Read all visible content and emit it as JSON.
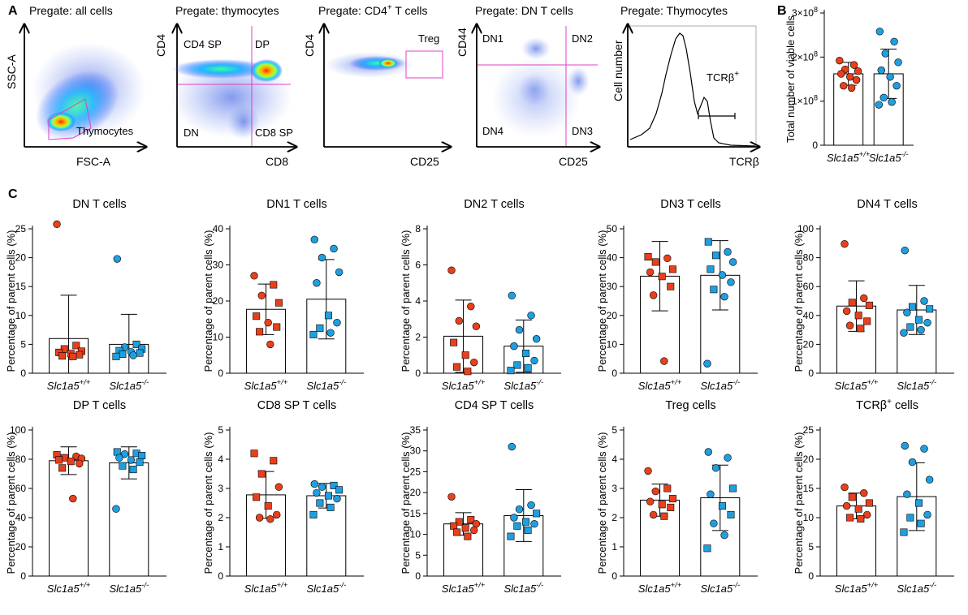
{
  "panels": {
    "A": "A",
    "B": "B",
    "C": "C"
  },
  "flow": [
    {
      "title": "Pregate: all cells",
      "xlabel": "FSC-A",
      "ylabel": "SSC-A",
      "gates": [
        "Thymocytes"
      ]
    },
    {
      "title": "Pregate: thymocytes",
      "xlabel": "CD8",
      "ylabel": "CD4",
      "gates": [
        "CD4 SP",
        "DP",
        "DN",
        "CD8 SP"
      ]
    },
    {
      "title": "Pregate: CD4+ T cells",
      "title_main": "Pregate: CD4",
      "title_sup": "+",
      "title_tail": " T cells",
      "xlabel": "CD25",
      "ylabel": "CD4",
      "gates": [
        "Treg"
      ]
    },
    {
      "title": "Pregate: DN T cells",
      "xlabel": "CD25",
      "ylabel": "CD44",
      "gates": [
        "DN1",
        "DN2",
        "DN4",
        "DN3"
      ]
    },
    {
      "title": "Pregate: Thymocytes",
      "xlabel": "TCRβ",
      "ylabel": "Cell number",
      "gate_main": "TCRβ",
      "gate_sup": "+"
    }
  ],
  "genotypes": [
    {
      "base": "Slc1a5",
      "sup": "+/+"
    },
    {
      "base": "Slc1a5",
      "sup": "-/-"
    }
  ],
  "colors": {
    "wt": "#e8401c",
    "ko": "#1f9fe0",
    "gate": "#e040c0"
  },
  "chart_data": [
    {
      "id": "B",
      "type": "bar",
      "title": "",
      "ylabel": "Total number of viable cells",
      "yticks": [
        {
          "v": 0,
          "base": "0",
          "exp": ""
        },
        {
          "v": 100000000.0,
          "base": "1×10",
          "exp": "8"
        },
        {
          "v": 200000000.0,
          "base": "2×10",
          "exp": "8"
        },
        {
          "v": 300000000.0,
          "base": "3×10",
          "exp": "8"
        }
      ],
      "ylim": [
        0,
        300000000.0
      ],
      "means": [
        162000000.0,
        162000000.0
      ],
      "sd": [
        26000000.0,
        56000000.0
      ],
      "wt": [
        192000000.0,
        182000000.0,
        172000000.0,
        168000000.0,
        162000000.0,
        155000000.0,
        148000000.0,
        135000000.0,
        130000000.0
      ],
      "ko": [
        258000000.0,
        235000000.0,
        208000000.0,
        188000000.0,
        170000000.0,
        155000000.0,
        135000000.0,
        108000000.0,
        98000000.0,
        92000000.0
      ]
    },
    {
      "id": "dn",
      "type": "bar",
      "title": "DN T cells",
      "ylabel": "Percentage of parent cells (%)",
      "yticks": [
        0,
        5,
        10,
        15,
        20,
        25
      ],
      "ylim": [
        0,
        25
      ],
      "means": [
        6,
        5
      ],
      "sd": [
        7.5,
        5.2
      ],
      "wt": [
        25.8,
        4.8,
        4.2,
        3.8,
        3.6,
        3.4,
        3.2,
        3.0,
        2.9
      ],
      "ko": [
        19.8,
        5.0,
        4.5,
        4.2,
        3.9,
        3.7,
        3.5,
        3.3,
        3.1,
        2.9
      ],
      "wt_shape": [
        "c",
        "s",
        "s",
        "s",
        "s",
        "s",
        "s",
        "s",
        "s"
      ],
      "ko_shape": [
        "c",
        "s",
        "c",
        "s",
        "s",
        "c",
        "s",
        "s",
        "c",
        "s"
      ]
    },
    {
      "id": "dn1",
      "type": "bar",
      "title": "DN1 T cells",
      "ylabel": "Percentage of parent cells (%)",
      "yticks": [
        0,
        10,
        20,
        30,
        40
      ],
      "ylim": [
        0,
        40
      ],
      "means": [
        17.7,
        20.5
      ],
      "sd": [
        7,
        11
      ],
      "wt": [
        27.0,
        24.5,
        21.5,
        19.5,
        15.8,
        14.0,
        12.8,
        11.5,
        8.0
      ],
      "ko": [
        37.0,
        34.5,
        32.0,
        28.0,
        25.0,
        16.0,
        14.0,
        12.5,
        11.2,
        10.7
      ],
      "wt_shape": [
        "c",
        "s",
        "c",
        "s",
        "s",
        "c",
        "s",
        "s",
        "c"
      ],
      "ko_shape": [
        "c",
        "c",
        "c",
        "c",
        "c",
        "s",
        "c",
        "s",
        "c",
        "s"
      ]
    },
    {
      "id": "dn2",
      "type": "bar",
      "title": "DN2 T cells",
      "ylabel": "Percentage of parent cells (%)",
      "yticks": [
        0,
        2,
        4,
        6,
        8
      ],
      "ylim": [
        0,
        8
      ],
      "means": [
        2.05,
        1.5
      ],
      "sd": [
        2.0,
        1.45
      ],
      "wt": [
        5.7,
        3.7,
        2.9,
        2.6,
        1.7,
        1.0,
        0.6,
        0.35,
        0.1
      ],
      "ko": [
        4.3,
        3.2,
        2.4,
        1.9,
        1.5,
        1.1,
        0.7,
        0.45,
        0.3,
        0.15
      ],
      "wt_shape": [
        "c",
        "c",
        "c",
        "c",
        "s",
        "s",
        "c",
        "s",
        "s"
      ],
      "ko_shape": [
        "c",
        "c",
        "c",
        "c",
        "c",
        "s",
        "c",
        "s",
        "s",
        "s"
      ]
    },
    {
      "id": "dn3",
      "type": "bar",
      "title": "DN3 T cells",
      "ylabel": "Percentage of parent cells (%)",
      "yticks": [
        0,
        10,
        20,
        30,
        40,
        50
      ],
      "ylim": [
        0,
        50
      ],
      "means": [
        33.6,
        33.9
      ],
      "sd": [
        12,
        12
      ],
      "wt": [
        40.3,
        39.8,
        38.5,
        36.0,
        35.0,
        33.5,
        30.0,
        27.0,
        4.2
      ],
      "ko": [
        45.5,
        42.0,
        40.8,
        38.5,
        36.0,
        34.0,
        31.5,
        29.0,
        26.5,
        3.3
      ],
      "wt_shape": [
        "s",
        "c",
        "s",
        "s",
        "c",
        "s",
        "s",
        "c",
        "c"
      ],
      "ko_shape": [
        "s",
        "c",
        "s",
        "c",
        "s",
        "c",
        "c",
        "s",
        "c",
        "c"
      ]
    },
    {
      "id": "dn4",
      "type": "bar",
      "title": "DN4 T cells",
      "ylabel": "Percentage of parent cells (%)",
      "yticks": [
        0,
        20,
        40,
        60,
        80,
        100
      ],
      "ylim": [
        0,
        100
      ],
      "means": [
        46.5,
        43.8
      ],
      "sd": [
        17.5,
        17
      ],
      "wt": [
        89.5,
        52.0,
        49.0,
        47.0,
        43.0,
        40.0,
        36.0,
        33.0,
        31.0
      ],
      "ko": [
        85.0,
        50.0,
        46.0,
        44.5,
        42.0,
        37.0,
        35.0,
        32.0,
        30.0,
        28.0
      ],
      "wt_shape": [
        "c",
        "c",
        "s",
        "s",
        "c",
        "s",
        "s",
        "c",
        "s"
      ],
      "ko_shape": [
        "c",
        "c",
        "s",
        "s",
        "c",
        "s",
        "c",
        "s",
        "c",
        "c"
      ]
    },
    {
      "id": "dp",
      "type": "bar",
      "title": "DP T cells",
      "ylabel": "Percentage of parent cells (%)",
      "yticks": [
        0,
        20,
        40,
        60,
        80,
        100
      ],
      "ylim": [
        0,
        100
      ],
      "means": [
        79,
        77.5
      ],
      "sd": [
        9.5,
        11
      ],
      "wt": [
        83.0,
        82.0,
        81.0,
        80.5,
        79.5,
        78.5,
        77.0,
        74.0,
        53.0
      ],
      "ko": [
        85.0,
        84.0,
        83.5,
        82.5,
        81.0,
        79.5,
        78.0,
        75.5,
        73.0,
        46.0
      ],
      "wt_shape": [
        "s",
        "c",
        "s",
        "c",
        "s",
        "s",
        "c",
        "s",
        "c"
      ],
      "ko_shape": [
        "s",
        "s",
        "c",
        "s",
        "c",
        "c",
        "s",
        "s",
        "s",
        "c"
      ]
    },
    {
      "id": "cd8",
      "type": "bar",
      "title": "CD8 SP T cells",
      "ylabel": "Percentage of parent cells (%)",
      "yticks": [
        0,
        1,
        2,
        3,
        4,
        5
      ],
      "ylim": [
        0,
        5
      ],
      "means": [
        2.78,
        2.75
      ],
      "sd": [
        0.8,
        0.42
      ],
      "wt": [
        4.2,
        3.95,
        3.5,
        3.05,
        2.7,
        2.4,
        2.1,
        2.0,
        1.95
      ],
      "ko": [
        3.15,
        3.1,
        3.05,
        2.95,
        2.85,
        2.75,
        2.65,
        2.5,
        2.35,
        2.1
      ],
      "wt_shape": [
        "s",
        "s",
        "s",
        "c",
        "s",
        "s",
        "c",
        "c",
        "c"
      ],
      "ko_shape": [
        "c",
        "s",
        "c",
        "s",
        "c",
        "s",
        "c",
        "s",
        "s",
        "s"
      ]
    },
    {
      "id": "cd4",
      "type": "bar",
      "title": "CD4 SP T cells",
      "ylabel": "Percentage of parent cells (%)",
      "yticks": [
        0,
        5,
        10,
        15,
        20,
        25,
        30,
        35
      ],
      "ylim": [
        0,
        35
      ],
      "means": [
        12.5,
        14.5
      ],
      "sd": [
        2.7,
        6.2
      ],
      "wt": [
        19.0,
        13.5,
        13.0,
        12.5,
        12.0,
        11.5,
        11.0,
        10.5,
        9.5
      ],
      "ko": [
        31.0,
        17.0,
        16.0,
        15.0,
        14.0,
        13.0,
        12.5,
        12.0,
        11.0,
        9.5
      ],
      "wt_shape": [
        "c",
        "s",
        "s",
        "c",
        "s",
        "s",
        "c",
        "s",
        "s"
      ],
      "ko_shape": [
        "c",
        "c",
        "c",
        "s",
        "c",
        "s",
        "c",
        "s",
        "s",
        "s"
      ]
    },
    {
      "id": "treg",
      "type": "bar",
      "title": "Treg cells",
      "ylabel": "Percentage of parent cells (%)",
      "yticks": [
        0,
        1,
        2,
        3,
        4,
        5
      ],
      "ylim": [
        0,
        5
      ],
      "means": [
        2.6,
        2.68
      ],
      "sd": [
        0.55,
        1.12
      ],
      "wt": [
        3.6,
        3.0,
        2.9,
        2.65,
        2.55,
        2.45,
        2.35,
        2.1,
        2.05
      ],
      "ko": [
        4.25,
        4.05,
        3.7,
        3.0,
        2.8,
        2.4,
        2.1,
        1.8,
        1.4,
        0.95
      ],
      "wt_shape": [
        "c",
        "s",
        "c",
        "s",
        "c",
        "s",
        "s",
        "c",
        "s"
      ],
      "ko_shape": [
        "c",
        "c",
        "c",
        "s",
        "c",
        "s",
        "s",
        "c",
        "c",
        "s"
      ]
    },
    {
      "id": "tcrb",
      "type": "bar",
      "title": "TCRβ+ cells",
      "title_main": "TCRβ",
      "title_sup": "+",
      "title_tail": " cells",
      "ylabel": "Percentage of parent cells (%)",
      "yticks": [
        0,
        5,
        10,
        15,
        20,
        25
      ],
      "ylim": [
        0,
        25
      ],
      "means": [
        12,
        13.6
      ],
      "sd": [
        2.2,
        5.8
      ],
      "wt": [
        15.2,
        14.2,
        13.5,
        12.5,
        12.0,
        11.5,
        10.5,
        10.0,
        9.8
      ],
      "ko": [
        22.3,
        21.8,
        19.5,
        16.5,
        14.0,
        12.5,
        10.5,
        10.0,
        9.0,
        7.5
      ],
      "wt_shape": [
        "c",
        "c",
        "s",
        "s",
        "c",
        "s",
        "c",
        "s",
        "s"
      ],
      "ko_shape": [
        "c",
        "c",
        "c",
        "c",
        "c",
        "s",
        "c",
        "s",
        "s",
        "s"
      ]
    }
  ]
}
